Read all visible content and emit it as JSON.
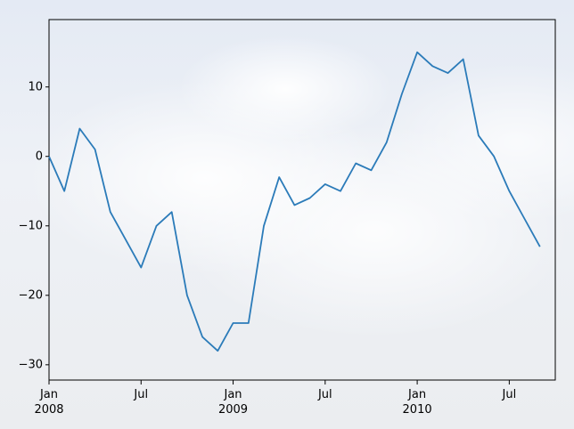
{
  "chart_data": {
    "type": "line",
    "x": [
      "2008-01",
      "2008-02",
      "2008-03",
      "2008-04",
      "2008-05",
      "2008-06",
      "2008-07",
      "2008-08",
      "2008-09",
      "2008-10",
      "2008-11",
      "2008-12",
      "2009-01",
      "2009-02",
      "2009-03",
      "2009-04",
      "2009-05",
      "2009-06",
      "2009-07",
      "2009-08",
      "2009-09",
      "2009-10",
      "2009-11",
      "2009-12",
      "2010-01",
      "2010-02",
      "2010-03",
      "2010-04",
      "2010-05",
      "2010-06",
      "2010-07",
      "2010-08",
      "2010-09"
    ],
    "series": [
      {
        "color": "#2b7bb9",
        "values": [
          0,
          -5,
          4,
          1,
          -8,
          -12,
          -16,
          -10,
          -8,
          -20,
          -26,
          -28,
          -24,
          -24,
          -10,
          -3,
          -7,
          -6,
          -4,
          -5,
          -1,
          -2,
          2,
          9,
          15,
          13,
          12,
          14,
          3,
          0,
          -5,
          -9,
          -13
        ]
      }
    ],
    "xlim": [
      "2008-01",
      "2010-10"
    ],
    "xticks": [
      {
        "value": "2008-01",
        "label": "Jan\n2008"
      },
      {
        "value": "2008-07",
        "label": "Jul"
      },
      {
        "value": "2009-01",
        "label": "Jan\n2009"
      },
      {
        "value": "2009-07",
        "label": "Jul"
      },
      {
        "value": "2010-01",
        "label": "Jan\n2010"
      },
      {
        "value": "2010-07",
        "label": "Jul"
      }
    ],
    "ylim": [
      -32.2,
      19.7
    ],
    "yticks": [
      {
        "value": -30,
        "label": "−30"
      },
      {
        "value": -20,
        "label": "−20"
      },
      {
        "value": -10,
        "label": "−10"
      },
      0,
      10
    ]
  }
}
